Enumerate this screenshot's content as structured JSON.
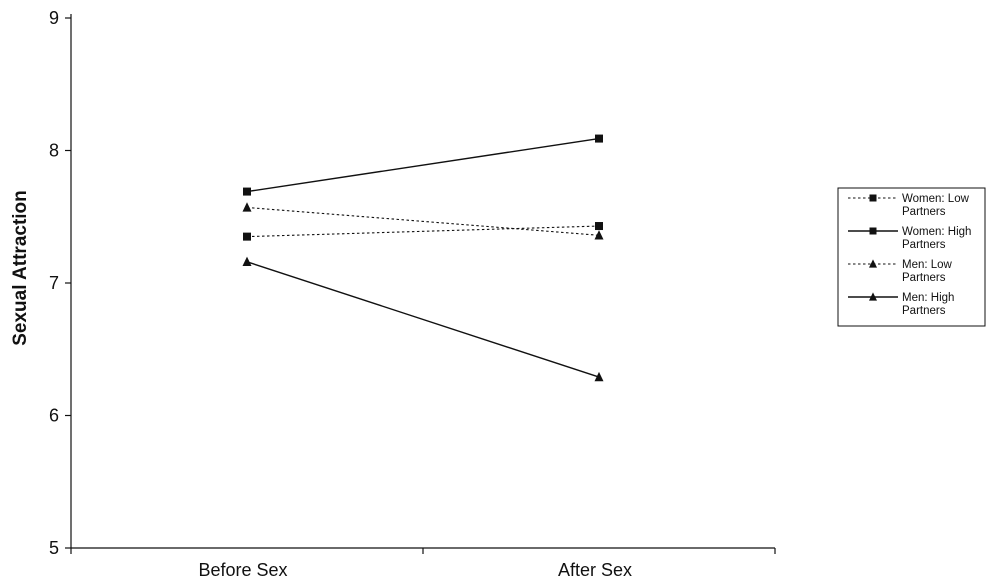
{
  "chart_data": {
    "type": "line",
    "title": "",
    "xlabel": "",
    "ylabel": "Sexual Attraction",
    "categories": [
      "Before Sex",
      "After Sex"
    ],
    "ylim": [
      5,
      9
    ],
    "yticks": [
      5,
      6,
      7,
      8,
      9
    ],
    "grid": false,
    "legend": "right",
    "series": [
      {
        "name": "Women: Low Partners",
        "name_lines": [
          "Women: Low",
          "Partners"
        ],
        "values": [
          7.35,
          7.43
        ],
        "marker": "square",
        "line": "dotted"
      },
      {
        "name": "Women: High Partners",
        "name_lines": [
          "Women: High",
          "Partners"
        ],
        "values": [
          7.69,
          8.09
        ],
        "marker": "square",
        "line": "solid"
      },
      {
        "name": "Men: Low Partners",
        "name_lines": [
          "Men: Low",
          "Partners"
        ],
        "values": [
          7.57,
          7.36
        ],
        "marker": "triangle",
        "line": "dotted"
      },
      {
        "name": "Men: High Partners",
        "name_lines": [
          "Men: High",
          "Partners"
        ],
        "values": [
          7.16,
          6.29
        ],
        "marker": "triangle",
        "line": "solid"
      }
    ],
    "colors": {
      "line": "#111111",
      "background": "#ffffff"
    }
  }
}
